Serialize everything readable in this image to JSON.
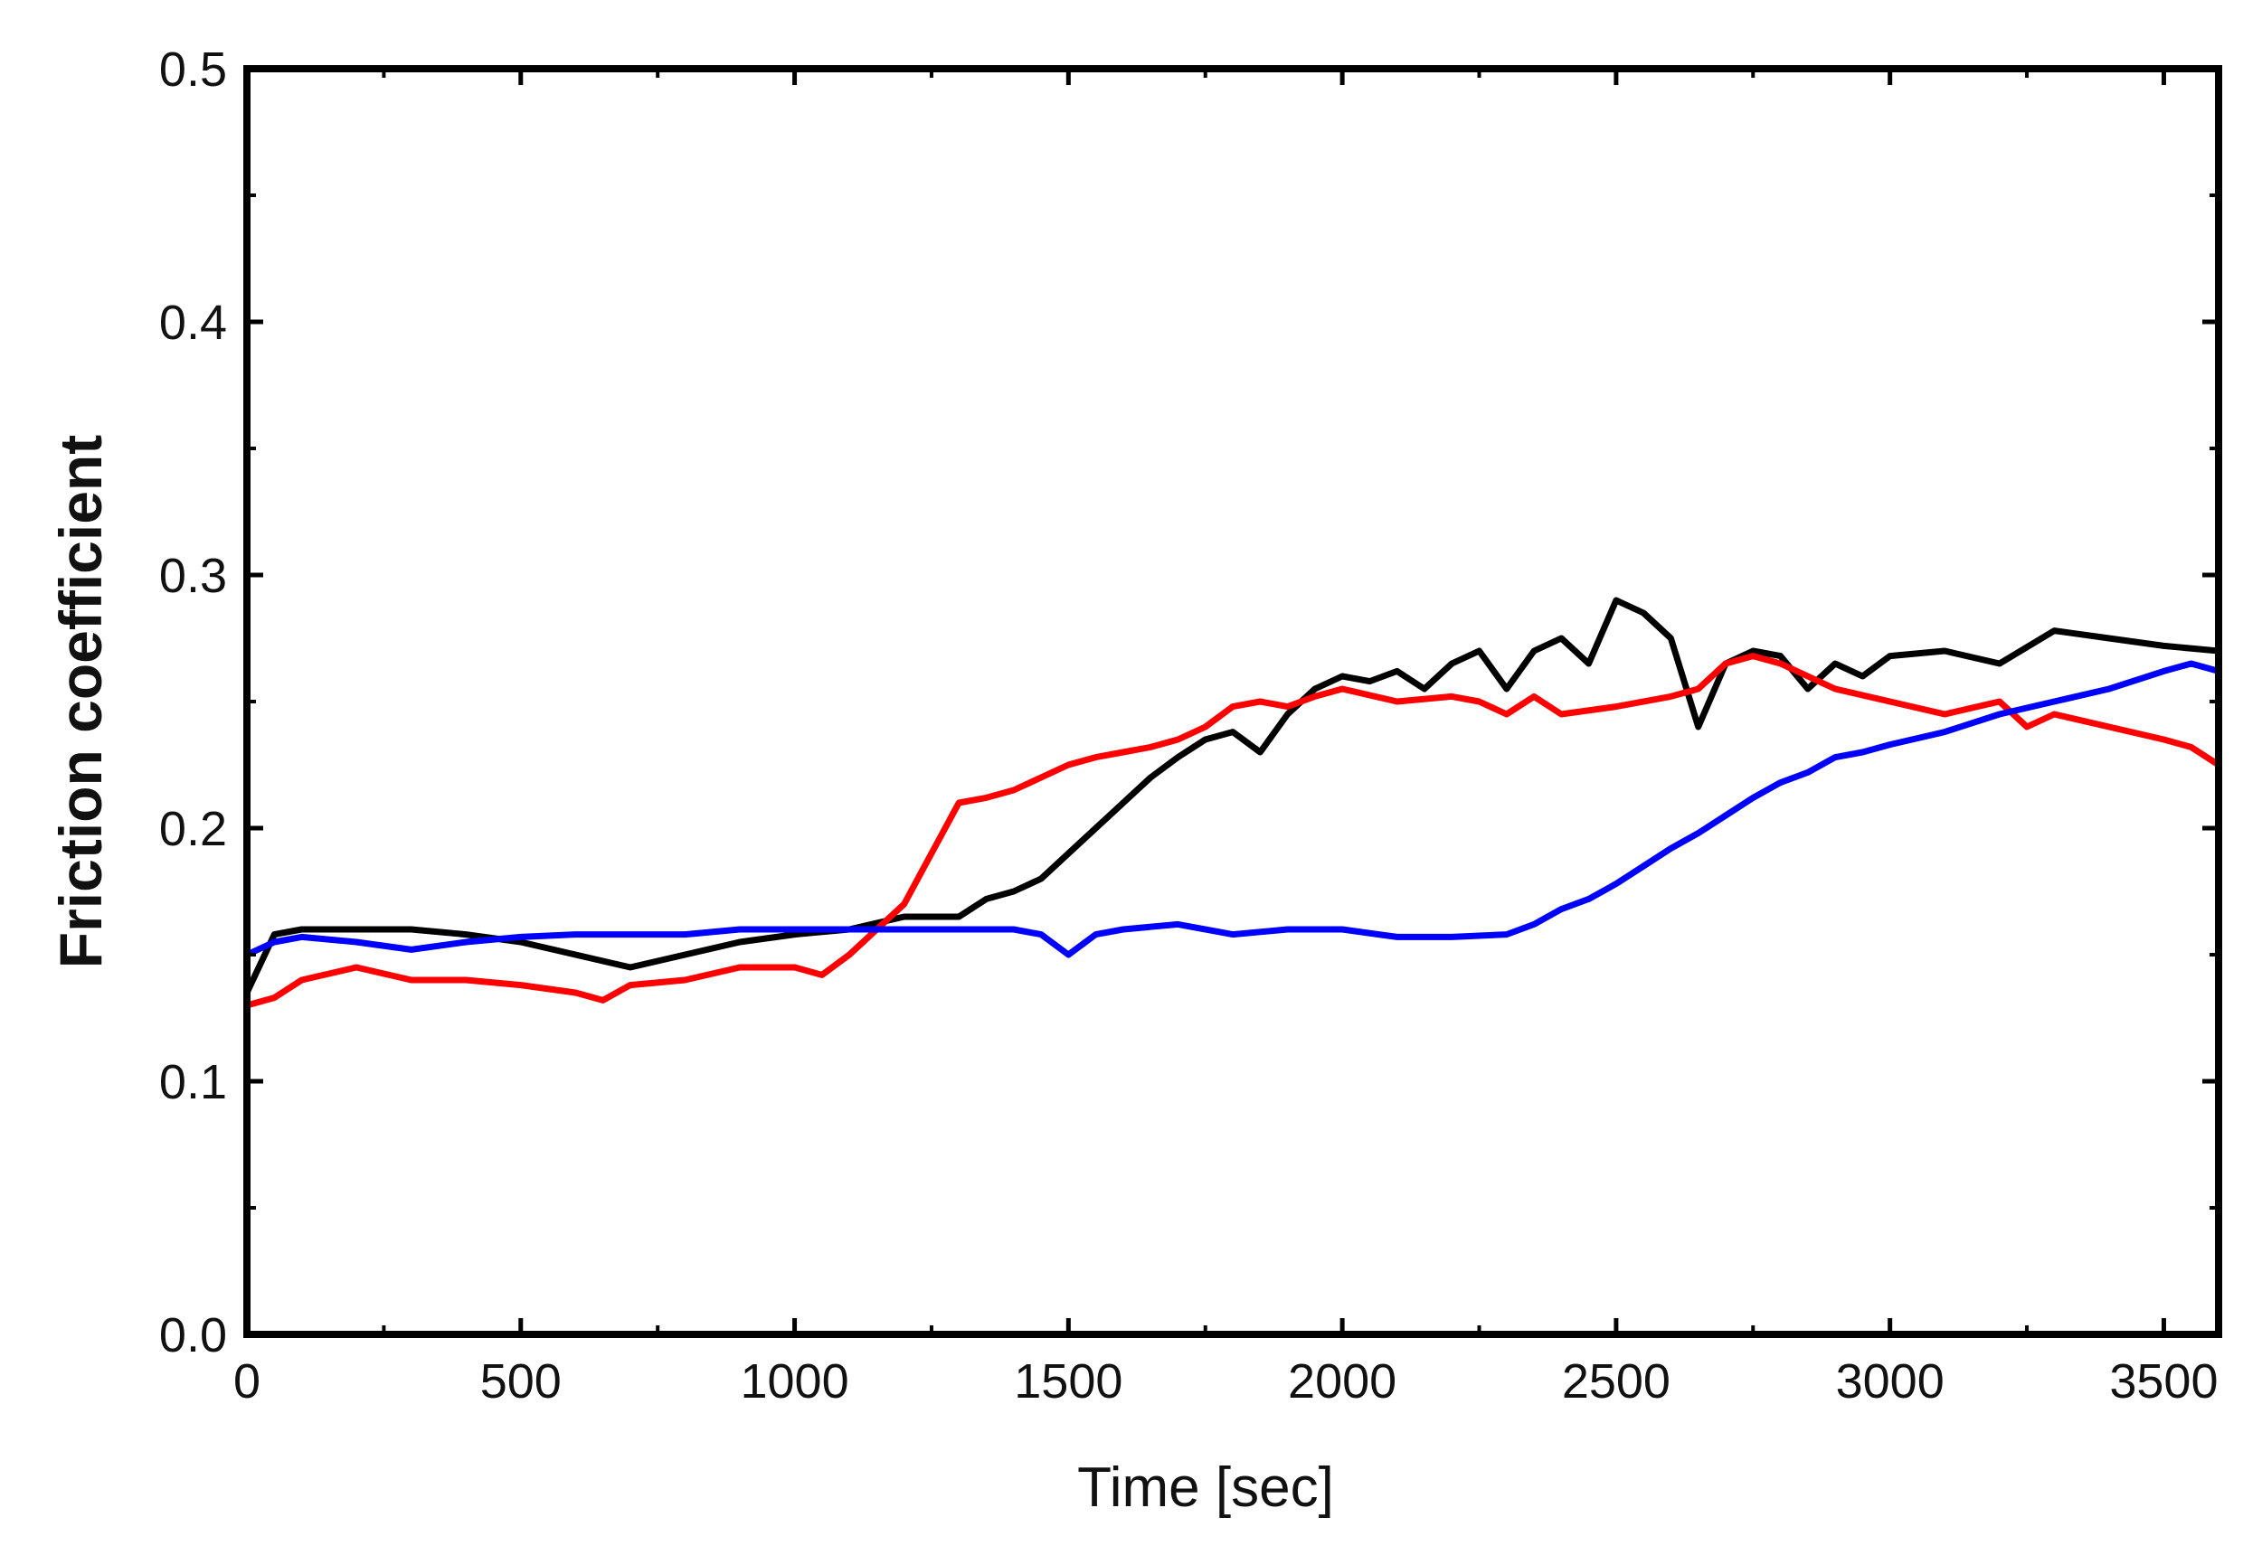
{
  "chart_data": {
    "type": "line",
    "title": "",
    "xlabel": "Time [sec]",
    "ylabel": "Friction coefficient",
    "xlim": [
      0,
      3600
    ],
    "ylim": [
      0.0,
      0.5
    ],
    "grid": false,
    "legend": "none",
    "x_ticks": [
      0,
      500,
      1000,
      1500,
      2000,
      2500,
      3000,
      3500
    ],
    "x_tick_labels": [
      "0",
      "500",
      "1000",
      "1500",
      "2000",
      "2500",
      "3000",
      "3500"
    ],
    "y_ticks": [
      0.0,
      0.1,
      0.2,
      0.3,
      0.4,
      0.5
    ],
    "y_tick_labels": [
      "0.0",
      "0.1",
      "0.2",
      "0.3",
      "0.4",
      "0.5"
    ],
    "series": [
      {
        "color": "#000000",
        "x": [
          0,
          50,
          100,
          200,
          300,
          400,
          500,
          600,
          700,
          800,
          900,
          1000,
          1100,
          1200,
          1300,
          1350,
          1400,
          1450,
          1500,
          1550,
          1600,
          1650,
          1700,
          1750,
          1800,
          1850,
          1900,
          1950,
          2000,
          2050,
          2100,
          2150,
          2200,
          2250,
          2300,
          2350,
          2400,
          2450,
          2500,
          2550,
          2600,
          2650,
          2700,
          2750,
          2800,
          2850,
          2900,
          2950,
          3000,
          3100,
          3200,
          3300,
          3400,
          3500,
          3600
        ],
        "values": [
          0.135,
          0.158,
          0.16,
          0.16,
          0.16,
          0.158,
          0.155,
          0.15,
          0.145,
          0.15,
          0.155,
          0.158,
          0.16,
          0.165,
          0.165,
          0.172,
          0.175,
          0.18,
          0.19,
          0.2,
          0.21,
          0.22,
          0.228,
          0.235,
          0.238,
          0.23,
          0.245,
          0.255,
          0.26,
          0.258,
          0.262,
          0.255,
          0.265,
          0.27,
          0.255,
          0.27,
          0.275,
          0.265,
          0.29,
          0.285,
          0.275,
          0.24,
          0.265,
          0.27,
          0.268,
          0.255,
          0.265,
          0.26,
          0.268,
          0.27,
          0.265,
          0.278,
          0.275,
          0.272,
          0.27
        ]
      },
      {
        "color": "#ff0000",
        "x": [
          0,
          50,
          100,
          200,
          300,
          400,
          500,
          600,
          650,
          700,
          800,
          900,
          1000,
          1050,
          1100,
          1150,
          1200,
          1250,
          1300,
          1350,
          1400,
          1450,
          1500,
          1550,
          1600,
          1650,
          1700,
          1750,
          1800,
          1850,
          1900,
          1950,
          2000,
          2100,
          2200,
          2250,
          2300,
          2350,
          2400,
          2500,
          2600,
          2650,
          2700,
          2750,
          2800,
          2850,
          2900,
          3000,
          3100,
          3200,
          3250,
          3300,
          3400,
          3500,
          3550,
          3600
        ],
        "values": [
          0.13,
          0.133,
          0.14,
          0.145,
          0.14,
          0.14,
          0.138,
          0.135,
          0.132,
          0.138,
          0.14,
          0.145,
          0.145,
          0.142,
          0.15,
          0.16,
          0.17,
          0.19,
          0.21,
          0.212,
          0.215,
          0.22,
          0.225,
          0.228,
          0.23,
          0.232,
          0.235,
          0.24,
          0.248,
          0.25,
          0.248,
          0.252,
          0.255,
          0.25,
          0.252,
          0.25,
          0.245,
          0.252,
          0.245,
          0.248,
          0.252,
          0.255,
          0.265,
          0.268,
          0.265,
          0.26,
          0.255,
          0.25,
          0.245,
          0.25,
          0.24,
          0.245,
          0.24,
          0.235,
          0.232,
          0.225
        ]
      },
      {
        "color": "#0000ff",
        "x": [
          0,
          50,
          100,
          200,
          300,
          400,
          500,
          600,
          700,
          800,
          900,
          1000,
          1100,
          1200,
          1300,
          1400,
          1450,
          1500,
          1550,
          1600,
          1700,
          1800,
          1900,
          2000,
          2100,
          2200,
          2300,
          2350,
          2400,
          2450,
          2500,
          2550,
          2600,
          2650,
          2700,
          2750,
          2800,
          2850,
          2900,
          2950,
          3000,
          3100,
          3200,
          3300,
          3400,
          3500,
          3550,
          3600
        ],
        "values": [
          0.15,
          0.155,
          0.157,
          0.155,
          0.152,
          0.155,
          0.157,
          0.158,
          0.158,
          0.158,
          0.16,
          0.16,
          0.16,
          0.16,
          0.16,
          0.16,
          0.158,
          0.15,
          0.158,
          0.16,
          0.162,
          0.158,
          0.16,
          0.16,
          0.157,
          0.157,
          0.158,
          0.162,
          0.168,
          0.172,
          0.178,
          0.185,
          0.192,
          0.198,
          0.205,
          0.212,
          0.218,
          0.222,
          0.228,
          0.23,
          0.233,
          0.238,
          0.245,
          0.25,
          0.255,
          0.262,
          0.265,
          0.262
        ]
      }
    ]
  }
}
